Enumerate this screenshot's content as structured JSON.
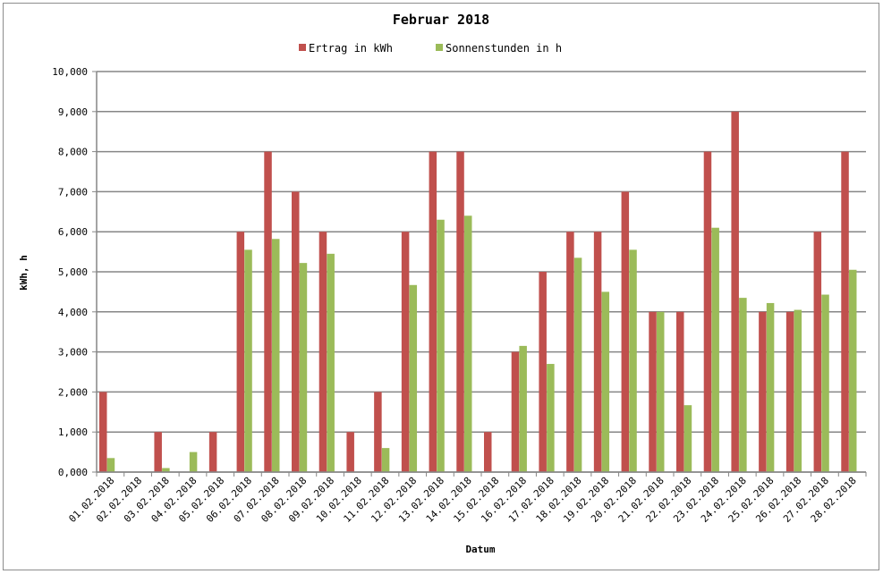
{
  "chart_data": {
    "type": "bar",
    "title": "Februar 2018",
    "xlabel": "Datum",
    "ylabel": "kWh, h",
    "ylim": [
      0,
      10
    ],
    "y_ticks": [
      "0,000",
      "1,000",
      "2,000",
      "3,000",
      "4,000",
      "5,000",
      "6,000",
      "7,000",
      "8,000",
      "9,000",
      "10,000"
    ],
    "grid": true,
    "legend_position": "top",
    "categories": [
      "01.02.2018",
      "02.02.2018",
      "03.02.2018",
      "04.02.2018",
      "05.02.2018",
      "06.02.2018",
      "07.02.2018",
      "08.02.2018",
      "09.02.2018",
      "10.02.2018",
      "11.02.2018",
      "12.02.2018",
      "13.02.2018",
      "14.02.2018",
      "15.02.2018",
      "16.02.2018",
      "17.02.2018",
      "18.02.2018",
      "19.02.2018",
      "20.02.2018",
      "21.02.2018",
      "22.02.2018",
      "23.02.2018",
      "24.02.2018",
      "25.02.2018",
      "26.02.2018",
      "27.02.2018",
      "28.02.2018"
    ],
    "series": [
      {
        "name": "Ertrag in kWh",
        "color": "#c0504d",
        "values": [
          2,
          0,
          1,
          0,
          1,
          6,
          8,
          7,
          6,
          1,
          2,
          6,
          8,
          8,
          1,
          3,
          5,
          6,
          6,
          7,
          4,
          4,
          8,
          9,
          4,
          4,
          6,
          8
        ]
      },
      {
        "name": "Sonnenstunden in h",
        "color": "#9bbb59",
        "values": [
          0.35,
          0,
          0.1,
          0.5,
          0,
          5.55,
          5.82,
          5.22,
          5.45,
          0,
          0.6,
          4.67,
          6.3,
          6.4,
          0,
          3.15,
          2.7,
          5.35,
          4.5,
          5.55,
          4.0,
          1.67,
          6.1,
          4.35,
          4.22,
          4.05,
          4.43,
          5.05
        ]
      }
    ]
  }
}
